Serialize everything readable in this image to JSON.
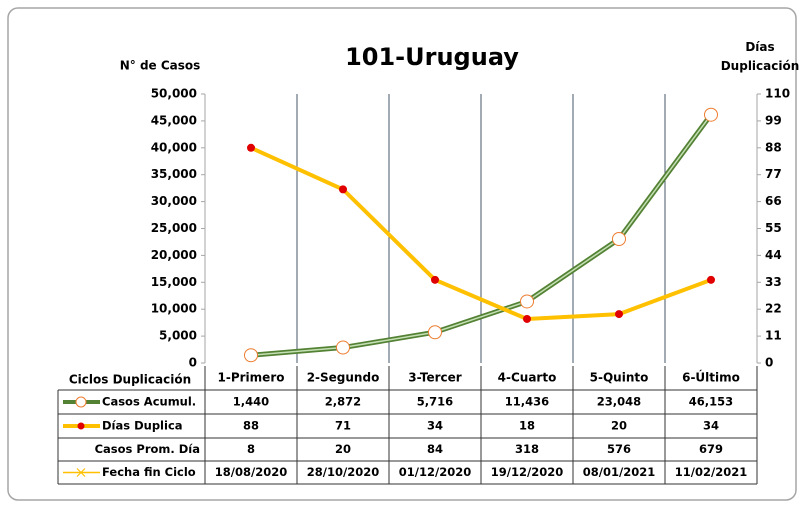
{
  "chart_data": {
    "type": "line",
    "title": "101-Uruguay",
    "y_label": "N° de Casos",
    "y2_label": "Días Duplicación",
    "x_label": "Ciclos Duplicación",
    "categories": [
      "1-Primero",
      "2-Segundo",
      "3-Tercer",
      "4-Cuarto",
      "5-Quinto",
      "6-Último"
    ],
    "series": [
      {
        "name": "Casos Acumul.",
        "color": "#548235",
        "axis": "y",
        "values": [
          1440,
          2872,
          5716,
          11436,
          23048,
          46153
        ],
        "value_labels": [
          "1,440",
          "2,872",
          "5,716",
          "11,436",
          "23,048",
          "46,153"
        ]
      },
      {
        "name": "Días Duplica",
        "color": "#ffc000",
        "axis": "y2",
        "values": [
          88,
          71,
          34,
          18,
          20,
          34
        ]
      }
    ],
    "table_rows": [
      {
        "name": "Casos Prom. Día",
        "values": [
          8,
          20,
          84,
          318,
          576,
          679
        ]
      },
      {
        "name": "Fecha fin Ciclo",
        "color": "#ffc000",
        "values": [
          "18/08/2020",
          "28/10/2020",
          "01/12/2020",
          "19/12/2020",
          "08/01/2021",
          "11/02/2021"
        ]
      }
    ],
    "ylim": [
      0,
      50000
    ],
    "yticks": [
      0,
      {
        "value": 5000,
        "label": "5,000"
      },
      {
        "value": 10000,
        "label": "10,000"
      },
      {
        "value": 15000,
        "label": "15,000"
      },
      {
        "value": 20000,
        "label": "20,000"
      },
      {
        "value": 25000,
        "label": "25,000"
      },
      {
        "value": 30000,
        "label": "30,000"
      },
      {
        "value": 35000,
        "label": "35,000"
      },
      {
        "value": 40000,
        "label": "40,000"
      },
      {
        "value": 45000,
        "label": "45,000"
      },
      {
        "value": 50000,
        "label": "50,000"
      }
    ],
    "y2lim": [
      0,
      110
    ],
    "y2ticks": [
      0,
      11,
      22,
      33,
      44,
      55,
      66,
      77,
      88,
      99,
      110
    ],
    "grid": false
  }
}
